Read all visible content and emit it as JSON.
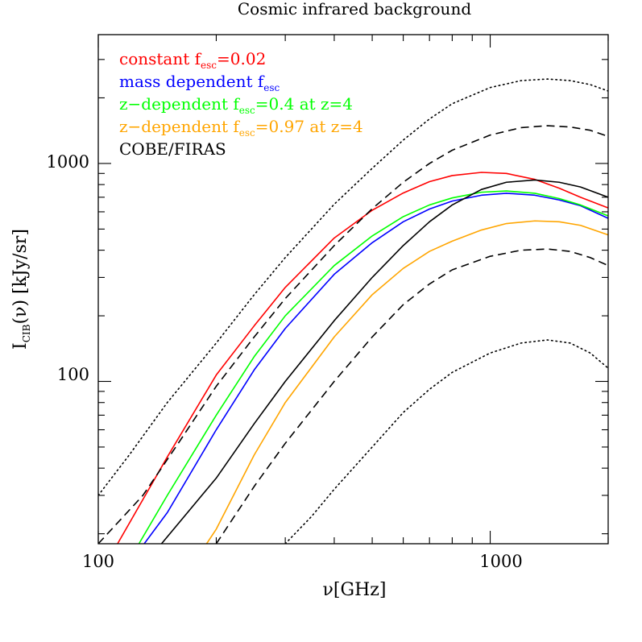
{
  "chart_data": {
    "type": "line",
    "title": "Cosmic infrared background",
    "xlabel": "ν[GHz]",
    "ylabel_main": "I",
    "ylabel_sub": "CIB",
    "ylabel_rest": "(ν)  [kJy/sr]",
    "xscale": "log",
    "yscale": "log",
    "xlim": [
      100,
      2000
    ],
    "ylim": [
      18,
      3900
    ],
    "x_ticks": [
      100,
      1000
    ],
    "x_tick_labels": [
      "100",
      "1000"
    ],
    "y_ticks": [
      100,
      1000
    ],
    "y_tick_labels": [
      "100",
      "1000"
    ],
    "legend_position": "top-left",
    "legend": [
      {
        "pre": "constant f",
        "sub": "esc",
        "post": "=0.02",
        "color": "#ff0000"
      },
      {
        "pre": "mass dependent f",
        "sub": "esc",
        "post": "",
        "color": "#0000ff"
      },
      {
        "pre": "z−dependent f",
        "sub": "esc",
        "post": "=0.4 at z=4",
        "color": "#00ff00"
      },
      {
        "pre": "z−dependent f",
        "sub": "esc",
        "post": "=0.97 at z=4",
        "color": "#ffa500"
      },
      {
        "pre": "COBE/FIRAS",
        "sub": "",
        "post": "",
        "color": "#000000"
      }
    ],
    "series": [
      {
        "name": "constant f_esc=0.02",
        "color": "#ff0000",
        "dash": "solid",
        "x": [
          112,
          150,
          200,
          250,
          300,
          400,
          500,
          600,
          700,
          800,
          950,
          1100,
          1300,
          1500,
          1700,
          2000
        ],
        "y": [
          18,
          45,
          107,
          180,
          270,
          455,
          610,
          732,
          825,
          880,
          910,
          900,
          845,
          770,
          700,
          625
        ]
      },
      {
        "name": "mass dependent f_esc",
        "color": "#0000ff",
        "dash": "solid",
        "x": [
          131,
          150,
          200,
          250,
          300,
          400,
          500,
          600,
          700,
          800,
          950,
          1100,
          1300,
          1500,
          1700,
          2000
        ],
        "y": [
          18,
          25,
          60,
          113,
          175,
          310,
          433,
          540,
          618,
          672,
          715,
          730,
          715,
          680,
          640,
          560
        ]
      },
      {
        "name": "z-dependent f_esc=0.4 at z=4",
        "color": "#00ff00",
        "dash": "solid",
        "x": [
          127,
          150,
          200,
          250,
          300,
          400,
          500,
          600,
          700,
          800,
          950,
          1100,
          1300,
          1500,
          1700,
          2000
        ],
        "y": [
          18,
          30,
          70,
          130,
          200,
          340,
          465,
          570,
          645,
          695,
          738,
          748,
          730,
          690,
          645,
          575
        ]
      },
      {
        "name": "z-dependent f_esc=0.97 at z=4",
        "color": "#ffa500",
        "dash": "solid",
        "x": [
          189,
          200,
          250,
          300,
          400,
          500,
          600,
          700,
          800,
          950,
          1100,
          1300,
          1500,
          1700,
          2000
        ],
        "y": [
          18,
          21,
          46,
          80,
          160,
          250,
          330,
          395,
          440,
          495,
          530,
          545,
          540,
          520,
          470
        ]
      },
      {
        "name": "COBE/FIRAS",
        "color": "#000000",
        "dash": "solid",
        "x": [
          145,
          200,
          250,
          300,
          400,
          500,
          600,
          700,
          800,
          950,
          1100,
          1300,
          1500,
          1700,
          2000
        ],
        "y": [
          18,
          36,
          64,
          100,
          190,
          300,
          420,
          540,
          645,
          760,
          820,
          840,
          820,
          780,
          700
        ]
      },
      {
        "name": "COBE/FIRAS upper 1-sigma",
        "color": "#000000",
        "dash": "dashed",
        "x": [
          100,
          130,
          160,
          200,
          250,
          300,
          400,
          500,
          600,
          700,
          800,
          1000,
          1200,
          1400,
          1600,
          1800,
          2000
        ],
        "y": [
          18,
          30,
          52,
          95,
          160,
          240,
          420,
          620,
          820,
          1000,
          1150,
          1350,
          1460,
          1490,
          1470,
          1420,
          1330
        ]
      },
      {
        "name": "COBE/FIRAS lower 1-sigma",
        "color": "#000000",
        "dash": "dashed",
        "x": [
          200,
          250,
          300,
          400,
          500,
          600,
          700,
          800,
          1000,
          1200,
          1400,
          1600,
          1800,
          2000
        ],
        "y": [
          18,
          33,
          52,
          100,
          160,
          225,
          280,
          325,
          375,
          400,
          405,
          395,
          370,
          340
        ]
      },
      {
        "name": "COBE/FIRAS upper 2-sigma",
        "color": "#000000",
        "dash": "dotted",
        "x": [
          100,
          120,
          150,
          200,
          250,
          300,
          400,
          500,
          600,
          700,
          800,
          1000,
          1200,
          1400,
          1600,
          1800,
          2000
        ],
        "y": [
          30,
          46,
          80,
          150,
          250,
          370,
          650,
          950,
          1280,
          1600,
          1880,
          2230,
          2400,
          2440,
          2400,
          2300,
          2150
        ]
      },
      {
        "name": "COBE/FIRAS lower 2-sigma",
        "color": "#000000",
        "dash": "dotted",
        "x": [
          300,
          350,
          400,
          500,
          600,
          700,
          800,
          1000,
          1200,
          1400,
          1600,
          1800,
          2000
        ],
        "y": [
          18,
          24,
          32,
          50,
          72,
          92,
          110,
          135,
          150,
          155,
          150,
          135,
          115
        ]
      }
    ]
  }
}
